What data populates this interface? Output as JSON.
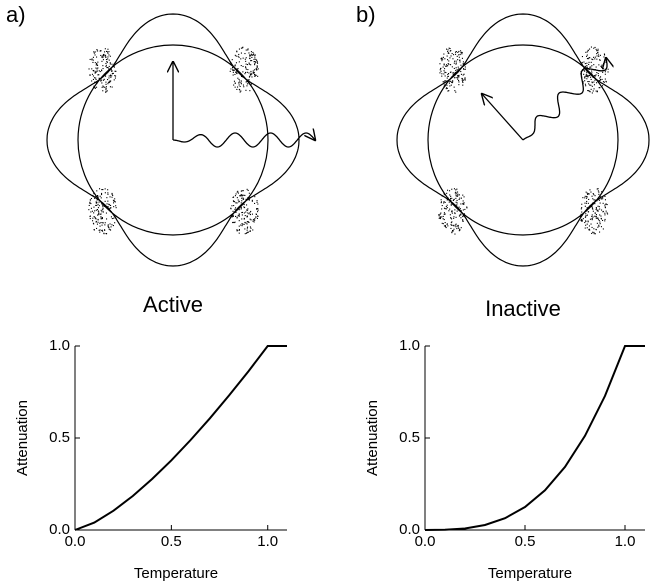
{
  "chart_data": [
    {
      "type": "line",
      "panel_label": "a)",
      "caption": "Active",
      "x_label": "Temperature",
      "y_label": "Attenuation",
      "x": [
        0,
        0.1,
        0.2,
        0.3,
        0.4,
        0.5,
        0.6,
        0.7,
        0.8,
        0.9,
        1.0,
        1.1
      ],
      "series": [
        {
          "color": "#000000",
          "values": [
            0,
            0.04,
            0.105,
            0.185,
            0.277,
            0.379,
            0.489,
            0.607,
            0.732,
            0.863,
            1.0,
            1.0
          ]
        }
      ],
      "xlim": [
        0,
        1.1
      ],
      "ylim": [
        0,
        1
      ],
      "xticks": [
        {
          "value": 0,
          "label": "0.0"
        },
        {
          "value": 0.5,
          "label": "0.5"
        },
        {
          "value": 1,
          "label": "1.0"
        }
      ],
      "yticks": [
        {
          "value": 0,
          "label": "0.0"
        },
        {
          "value": 0.5,
          "label": "0.5"
        },
        {
          "value": 1,
          "label": "1.0"
        }
      ]
    },
    {
      "type": "line",
      "panel_label": "b)",
      "caption": "Inactive",
      "x_label": "Temperature",
      "y_label": "Attenuation",
      "x": [
        0,
        0.1,
        0.2,
        0.3,
        0.4,
        0.5,
        0.6,
        0.7,
        0.8,
        0.9,
        1.0,
        1.1
      ],
      "series": [
        {
          "color": "#000000",
          "values": [
            0,
            0.001,
            0.008,
            0.027,
            0.064,
            0.125,
            0.216,
            0.343,
            0.512,
            0.729,
            1.0,
            1.0
          ]
        }
      ],
      "xlim": [
        0,
        1.1
      ],
      "ylim": [
        0,
        1
      ],
      "xticks": [
        {
          "value": 0,
          "label": "0.0"
        },
        {
          "value": 0.5,
          "label": "0.5"
        },
        {
          "value": 1,
          "label": "1.0"
        }
      ],
      "yticks": [
        {
          "value": 0,
          "label": "0.0"
        },
        {
          "value": 0.5,
          "label": "0.5"
        },
        {
          "value": 1,
          "label": "1.0"
        }
      ]
    }
  ]
}
